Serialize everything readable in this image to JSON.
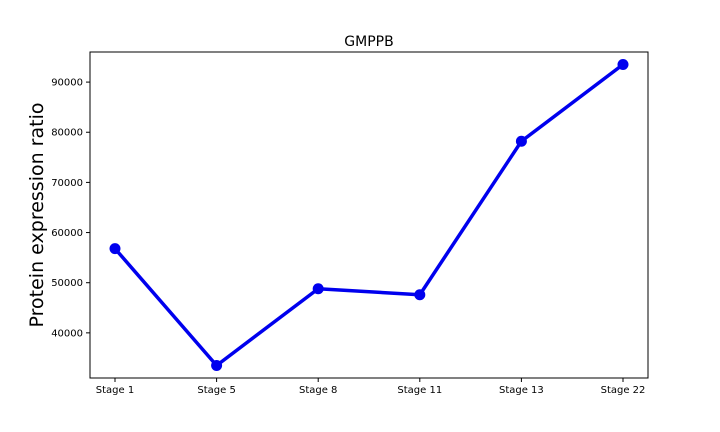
{
  "chart_data": {
    "type": "line",
    "title": "GMPPB",
    "xlabel": "",
    "ylabel": "Protein expression ratio",
    "categories": [
      "Stage 1",
      "Stage 5",
      "Stage 8",
      "Stage 11",
      "Stage 13",
      "Stage 22"
    ],
    "series": [
      {
        "values": [
          56800,
          33500,
          48800,
          47600,
          78200,
          93500
        ],
        "color": "#0000ee"
      }
    ],
    "ylim": [
      31000,
      96000
    ],
    "yticks": [
      40000,
      50000,
      60000,
      70000,
      80000,
      90000
    ],
    "ytick_labels": [
      "40000",
      "50000",
      "60000",
      "70000",
      "80000",
      "90000"
    ],
    "grid": false,
    "legend": "none"
  }
}
